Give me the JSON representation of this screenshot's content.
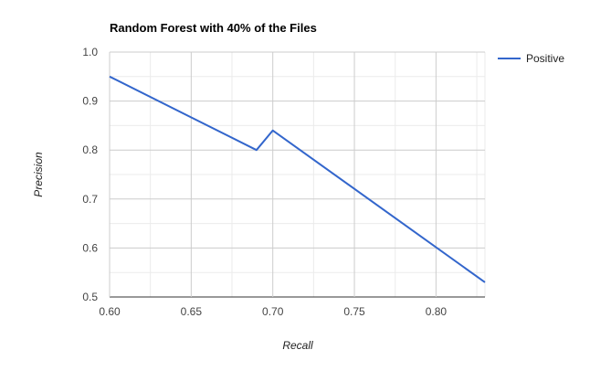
{
  "chart_data": {
    "type": "line",
    "title": "Random Forest with 40% of the Files",
    "xlabel": "Recall",
    "ylabel": "Precision",
    "xlim": [
      0.6,
      0.83
    ],
    "ylim": [
      0.5,
      1.0
    ],
    "x_ticks": [
      "0.60",
      "0.65",
      "0.70",
      "0.75",
      "0.80"
    ],
    "y_ticks": [
      "0.5",
      "0.6",
      "0.7",
      "0.8",
      "0.9",
      "1.0"
    ],
    "grid": true,
    "legend_position": "right",
    "series": [
      {
        "name": "Positive",
        "color": "#3366cc",
        "points": [
          {
            "x": 0.6,
            "y": 0.95
          },
          {
            "x": 0.69,
            "y": 0.8
          },
          {
            "x": 0.7,
            "y": 0.84
          },
          {
            "x": 0.83,
            "y": 0.53
          }
        ]
      }
    ]
  }
}
